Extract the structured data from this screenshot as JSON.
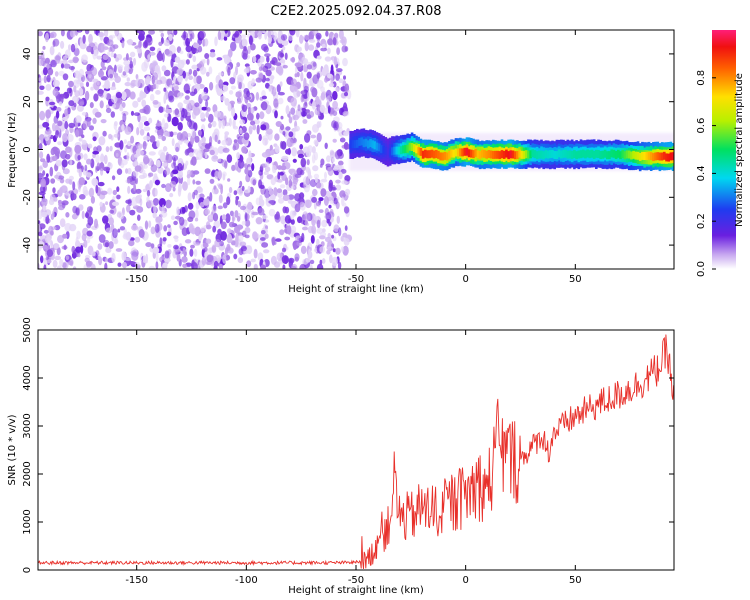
{
  "figure_title": "C2E2.2025.092.04.37.R08",
  "chart_data": [
    {
      "type": "heatmap",
      "title": "",
      "xlabel": "Height of straight line (km)",
      "ylabel": "Frequency (Hz)",
      "xlim": [
        -195,
        95
      ],
      "ylim": [
        -50,
        50
      ],
      "xticks": [
        -150,
        -100,
        -50,
        0,
        50
      ],
      "yticks": [
        -40,
        -20,
        0,
        20,
        40
      ],
      "colorbar": {
        "label": "Normalized spectral amplitude",
        "range": [
          0.0,
          1.0
        ],
        "ticks": [
          0.0,
          0.2,
          0.4,
          0.6,
          0.8
        ],
        "colormap": "rainbow (violet to magenta)"
      },
      "noise_region_x": [
        -195,
        -53
      ],
      "ridge": {
        "x": [
          -53,
          -48,
          -42,
          -36,
          -30,
          -25,
          -20,
          -15,
          -10,
          -5,
          0,
          5,
          10,
          20,
          30,
          40,
          50,
          60,
          70,
          80,
          90,
          95
        ],
        "frequency": [
          2,
          3,
          2,
          -1,
          0,
          1,
          -2,
          -2,
          -3,
          -1,
          -1,
          -2,
          -2,
          -2,
          -2,
          -2,
          -2,
          -2,
          -2,
          -3,
          -3,
          -3
        ],
        "amplitude": [
          0.25,
          0.3,
          0.35,
          0.2,
          0.45,
          0.6,
          0.9,
          0.85,
          0.8,
          0.7,
          0.95,
          0.75,
          0.8,
          0.95,
          0.45,
          0.4,
          0.45,
          0.45,
          0.5,
          0.7,
          0.9,
          0.95
        ]
      }
    },
    {
      "type": "line",
      "title": "",
      "xlabel": "Height of straight line (km)",
      "ylabel": "SNR (10 * v/v)",
      "xlim": [
        -195,
        95
      ],
      "ylim": [
        0,
        5000
      ],
      "xticks": [
        -150,
        -100,
        -50,
        0,
        50
      ],
      "yticks": [
        0,
        1000,
        2000,
        3000,
        4000,
        5000
      ],
      "color": "#e8302a",
      "series": [
        {
          "x": [
            -195,
            -150,
            -100,
            -60,
            -50,
            -45,
            -42,
            -40,
            -38,
            -35,
            -33,
            -30,
            -25,
            -20,
            -15,
            -10,
            -5,
            0,
            5,
            10,
            15,
            20,
            25,
            30,
            35,
            38,
            40,
            50,
            60,
            70,
            80,
            88,
            92,
            95
          ],
          "values": [
            150,
            150,
            150,
            150,
            160,
            200,
            400,
            650,
            750,
            900,
            1900,
            1100,
            1100,
            1300,
            1200,
            1300,
            1400,
            1550,
            1800,
            1700,
            2600,
            2300,
            2300,
            2550,
            2800,
            2450,
            2850,
            3200,
            3450,
            3650,
            3900,
            4200,
            4600,
            3500
          ]
        }
      ]
    }
  ]
}
